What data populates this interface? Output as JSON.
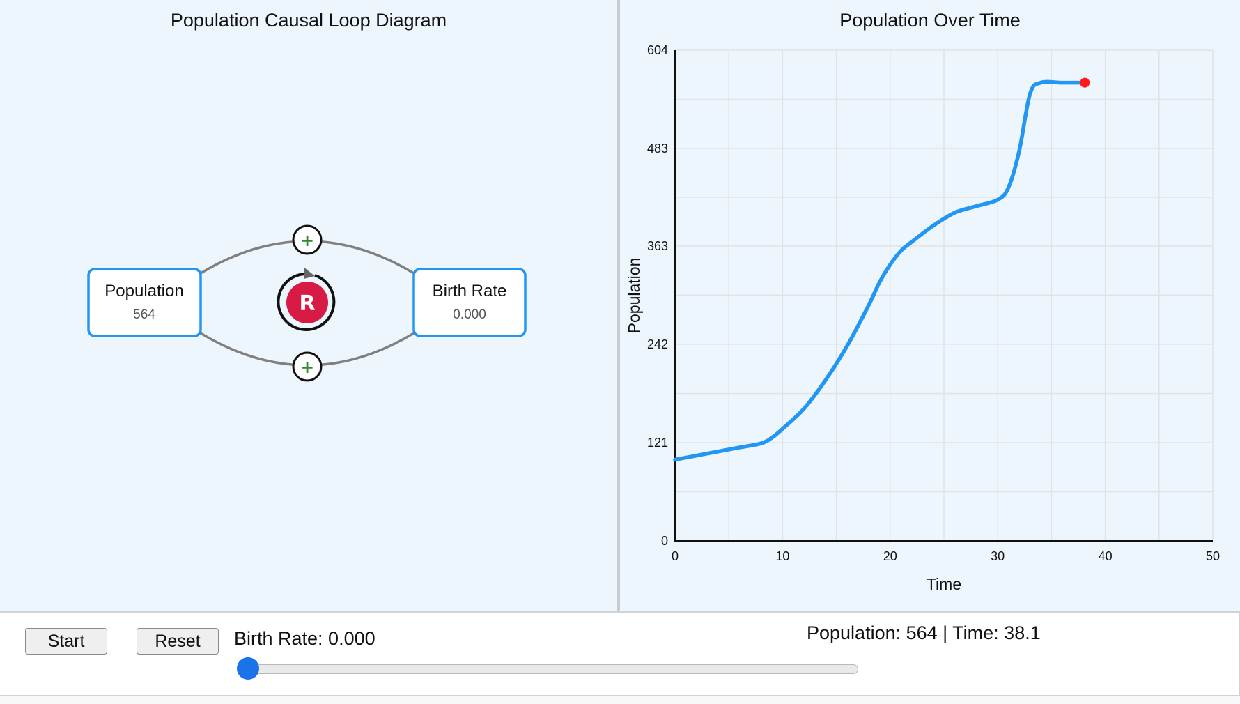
{
  "left_panel": {
    "title": "Population Causal Loop Diagram",
    "nodes": {
      "population": {
        "label": "Population",
        "value": "564"
      },
      "birth_rate": {
        "label": "Birth Rate",
        "value": "0.000"
      }
    },
    "links": {
      "top_sign": "+",
      "bottom_sign": "+"
    },
    "loop": {
      "label": "R"
    }
  },
  "right_panel": {
    "title": "Population Over Time"
  },
  "chart_data": {
    "type": "line",
    "title": "Population Over Time",
    "xlabel": "Time",
    "ylabel": "Population",
    "xlim": [
      0,
      50
    ],
    "ylim": [
      0,
      604
    ],
    "x_ticks": [
      "0",
      "10",
      "20",
      "30",
      "40",
      "50"
    ],
    "y_ticks": [
      "0",
      "121",
      "242",
      "363",
      "483",
      "604"
    ],
    "grid": true,
    "series": [
      {
        "color": "#2196f3",
        "x": [
          0,
          2,
          4,
          6,
          8,
          9,
          10,
          12,
          14,
          16,
          18,
          19,
          20,
          21,
          22,
          24,
          26,
          28,
          30,
          31,
          32,
          33,
          34,
          36,
          38.1
        ],
        "y": [
          100,
          105,
          110,
          115,
          120,
          127,
          138,
          163,
          198,
          240,
          290,
          318,
          340,
          357,
          368,
          388,
          404,
          412,
          420,
          435,
          480,
          550,
          564,
          564,
          564
        ]
      }
    ],
    "current_point": {
      "x": 38.1,
      "y": 564,
      "color": "#ff1a1a"
    }
  },
  "controls": {
    "start_label": "Start",
    "reset_label": "Reset",
    "birth_rate_label": "Birth Rate: 0.000",
    "status": "Population: 564 | Time: 38.1",
    "slider_value": 0
  },
  "colors": {
    "accent": "#2196f3",
    "loop_badge": "#d81b45",
    "plus_sign": "#2e8b2e",
    "node_border": "#2196f3"
  }
}
